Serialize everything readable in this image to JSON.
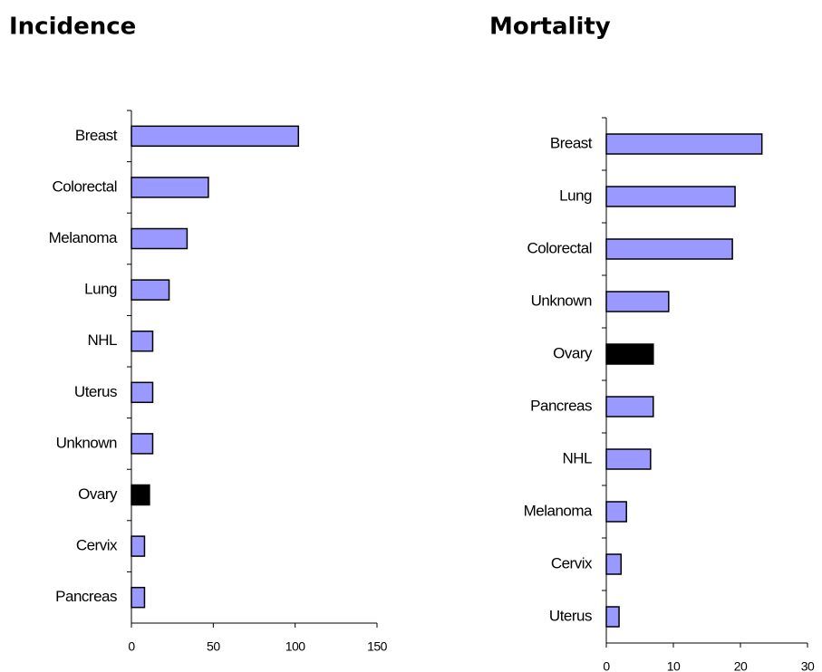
{
  "chart_data": [
    {
      "type": "barh",
      "title": "Incidence",
      "categories": [
        "Breast",
        "Colorectal",
        "Melanoma",
        "Lung",
        "NHL",
        "Uterus",
        "Unknown",
        "Ovary",
        "Cervix",
        "Pancreas"
      ],
      "values": [
        102,
        47,
        34,
        23,
        13,
        13,
        13,
        11,
        8,
        8
      ],
      "colors": [
        "#9999ff",
        "#9999ff",
        "#9999ff",
        "#9999ff",
        "#9999ff",
        "#9999ff",
        "#9999ff",
        "#000000",
        "#9999ff",
        "#9999ff"
      ],
      "xlim": [
        0,
        150
      ],
      "xticks": [
        0,
        50,
        100,
        150
      ]
    },
    {
      "type": "barh",
      "title": "Mortality",
      "categories": [
        "Breast",
        "Lung",
        "Colorectal",
        "Unknown",
        "Ovary",
        "Pancreas",
        "NHL",
        "Melanoma",
        "Cervix",
        "Uterus"
      ],
      "values": [
        23.2,
        19.2,
        18.8,
        9.3,
        7.0,
        7.0,
        6.6,
        3.0,
        2.2,
        1.9
      ],
      "colors": [
        "#9999ff",
        "#9999ff",
        "#9999ff",
        "#9999ff",
        "#000000",
        "#9999ff",
        "#9999ff",
        "#9999ff",
        "#9999ff",
        "#9999ff"
      ],
      "xlim": [
        0,
        30
      ],
      "xticks": [
        0,
        10,
        20,
        30
      ]
    }
  ]
}
